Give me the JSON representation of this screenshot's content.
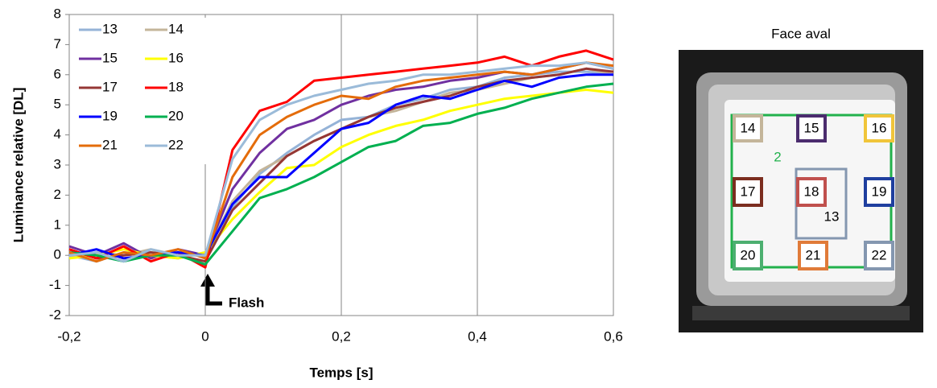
{
  "chart_data": {
    "type": "line",
    "ylabel": "Luminance relative [DL]",
    "xlabel": "Temps [s]",
    "annotation": "Flash",
    "x": [
      -0.2,
      -0.16,
      -0.12,
      -0.08,
      -0.04,
      0,
      0.04,
      0.08,
      0.12,
      0.16,
      0.2,
      0.24,
      0.28,
      0.32,
      0.36,
      0.4,
      0.44,
      0.48,
      0.52,
      0.56,
      0.6
    ],
    "xlim": [
      -0.2,
      0.6
    ],
    "xticks": [
      {
        "value": -0.2,
        "label": "-0,2"
      },
      0,
      {
        "value": 0.2,
        "label": "0,2"
      },
      {
        "value": 0.4,
        "label": "0,4"
      },
      {
        "value": 0.6,
        "label": "0,6"
      }
    ],
    "ylim": [
      -2,
      8
    ],
    "yticks": [
      -2,
      -1,
      0,
      1,
      2,
      3,
      4,
      5,
      6,
      7,
      8
    ],
    "grid": "x",
    "legend": "upper-left",
    "series": [
      {
        "name": "13",
        "color": "#95b3d7",
        "values": [
          0,
          -0.2,
          0.1,
          0,
          -0.1,
          0.1,
          1.6,
          2.7,
          3.4,
          4.0,
          4.5,
          4.6,
          5.0,
          5.2,
          5.5,
          5.6,
          5.9,
          6.0,
          6.1,
          6.1,
          6.0
        ]
      },
      {
        "name": "14",
        "color": "#c4b59a",
        "values": [
          -0.1,
          0.1,
          0,
          0.2,
          0,
          0,
          1.8,
          2.8,
          3.3,
          3.8,
          4.2,
          4.6,
          4.8,
          5.1,
          5.4,
          5.5,
          5.7,
          5.9,
          6.0,
          6.2,
          6.0
        ]
      },
      {
        "name": "15",
        "color": "#7030a0",
        "values": [
          0.3,
          0,
          0.4,
          -0.1,
          0.2,
          0,
          2.2,
          3.4,
          4.2,
          4.5,
          5.0,
          5.3,
          5.5,
          5.6,
          5.8,
          5.9,
          6.1,
          6.0,
          6.2,
          6.4,
          6.2
        ]
      },
      {
        "name": "16",
        "color": "#ffff00",
        "values": [
          -0.1,
          0,
          0.2,
          0,
          -0.1,
          0.1,
          1.2,
          2.1,
          2.9,
          3.0,
          3.6,
          4.0,
          4.3,
          4.5,
          4.8,
          5.0,
          5.2,
          5.3,
          5.4,
          5.5,
          5.4
        ]
      },
      {
        "name": "17",
        "color": "#953735",
        "values": [
          0.2,
          -0.1,
          0,
          0.1,
          0,
          -0.2,
          1.5,
          2.4,
          3.3,
          3.8,
          4.2,
          4.6,
          4.9,
          5.1,
          5.3,
          5.6,
          5.8,
          5.9,
          6.0,
          6.2,
          6.1
        ]
      },
      {
        "name": "18",
        "color": "#ff0000",
        "values": [
          0.2,
          -0.1,
          0.3,
          -0.2,
          0.1,
          -0.4,
          3.5,
          4.8,
          5.1,
          5.8,
          5.9,
          6.0,
          6.1,
          6.2,
          6.3,
          6.4,
          6.6,
          6.3,
          6.6,
          6.8,
          6.5
        ]
      },
      {
        "name": "19",
        "color": "#0000ff",
        "values": [
          0,
          0.2,
          -0.1,
          0,
          0.1,
          0,
          1.7,
          2.6,
          2.6,
          3.4,
          4.2,
          4.4,
          5.0,
          5.3,
          5.2,
          5.5,
          5.8,
          5.6,
          5.9,
          6.0,
          6.0
        ]
      },
      {
        "name": "20",
        "color": "#00b050",
        "values": [
          0.1,
          0,
          -0.2,
          0,
          0,
          -0.3,
          0.8,
          1.9,
          2.2,
          2.6,
          3.1,
          3.6,
          3.8,
          4.3,
          4.4,
          4.7,
          4.9,
          5.2,
          5.4,
          5.6,
          5.7
        ]
      },
      {
        "name": "21",
        "color": "#e46c0a",
        "values": [
          0.1,
          -0.2,
          0.1,
          0,
          0.2,
          -0.1,
          2.6,
          4.0,
          4.6,
          5.0,
          5.3,
          5.2,
          5.6,
          5.8,
          5.9,
          6.0,
          6.1,
          6.0,
          6.2,
          6.4,
          6.3
        ]
      },
      {
        "name": "22",
        "color": "#9bbbd9",
        "values": [
          0,
          0.1,
          -0.2,
          0.2,
          0,
          0,
          3.2,
          4.5,
          5.0,
          5.3,
          5.5,
          5.7,
          5.8,
          6.0,
          6.0,
          6.1,
          6.2,
          6.3,
          6.3,
          6.4,
          6.2
        ]
      }
    ]
  },
  "image_panel": {
    "title": "Face aval",
    "labels": [
      "14",
      "15",
      "16",
      "2",
      "17",
      "18",
      "19",
      "13",
      "20",
      "21",
      "22"
    ]
  }
}
